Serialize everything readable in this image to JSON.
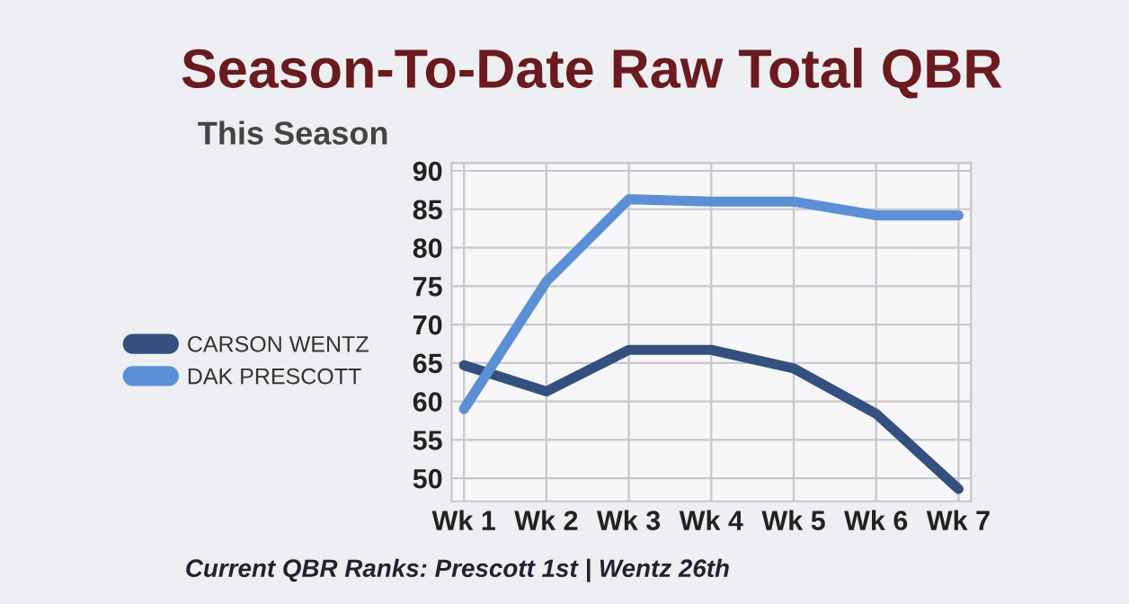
{
  "chart_data": {
    "type": "line",
    "title": "Season-To-Date Raw Total QBR",
    "subtitle": "This Season",
    "categories": [
      "Wk 1",
      "Wk 2",
      "Wk 3",
      "Wk 4",
      "Wk 5",
      "Wk 6",
      "Wk 7"
    ],
    "series": [
      {
        "name": "CARSON WENTZ",
        "color": "#34507f",
        "values": [
          64.7,
          61.3,
          66.7,
          66.7,
          64.3,
          58.4,
          48.6
        ]
      },
      {
        "name": "DAK PRESCOTT",
        "color": "#5b8fd6",
        "values": [
          59,
          75.6,
          86.3,
          86,
          86,
          84.2,
          84.2
        ]
      }
    ],
    "ylim": [
      47,
      91
    ],
    "yticks": [
      50,
      55,
      60,
      65,
      70,
      75,
      80,
      85,
      90
    ],
    "grid": true,
    "legend": "left",
    "marker": "none",
    "line_style": "solid",
    "annotations": [
      "Current QBR Ranks: Prescott 1st | Wentz 26th"
    ]
  }
}
